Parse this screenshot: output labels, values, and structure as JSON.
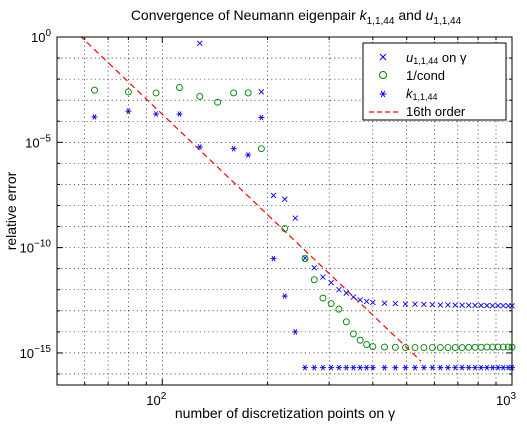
{
  "chart_data": {
    "type": "scatter",
    "title": {
      "prefix": "Convergence of Neumann eigenpair ",
      "k_symbol": "k",
      "k_subscript": "1,1,44",
      "conjunction": " and ",
      "u_symbol": "u",
      "u_subscript": "1,1,44"
    },
    "xlabel": "number of discretization points on γ",
    "ylabel": "relative error",
    "xscale": "log",
    "yscale": "log",
    "xlim": [
      50,
      1000
    ],
    "ylim": [
      3e-17,
      1
    ],
    "x_tick_labels": [
      {
        "value": 100,
        "base": "10",
        "exp": "2"
      },
      {
        "value": 1000,
        "base": "10",
        "exp": "3"
      }
    ],
    "y_tick_labels": [
      {
        "value": 1e-15,
        "base": "10",
        "exp": "−15"
      },
      {
        "value": 1e-10,
        "base": "10",
        "exp": "−10"
      },
      {
        "value": 1e-05,
        "base": "10",
        "exp": "−5"
      },
      {
        "value": 1,
        "base": "10",
        "exp": "0"
      }
    ],
    "grid": true,
    "legend_position": "top-right",
    "legend": [
      {
        "label_symbol": "u",
        "label_subscript": "1,1,44",
        "label_suffix": " on γ",
        "marker": "x",
        "color": "#0000ff"
      },
      {
        "label_text": "1/cond",
        "marker": "o",
        "color": "#008000"
      },
      {
        "label_symbol": "k",
        "label_subscript": "1,1,44",
        "marker": "*",
        "color": "#0000ff"
      },
      {
        "label_text": "16th order",
        "marker": "dashed-line",
        "color": "#ff0000"
      }
    ],
    "series": [
      {
        "marker": "x",
        "color": "#0000ff",
        "points": [
          [
            128,
            0.5
          ],
          [
            192,
            0.0025
          ],
          [
            208,
            3e-08
          ],
          [
            224,
            2e-08
          ],
          [
            240,
            2.5e-09
          ],
          [
            256,
            3.2e-11
          ],
          [
            272,
            1.1e-11
          ],
          [
            288,
            4e-12
          ],
          [
            304,
            2.2e-12
          ],
          [
            320,
            1e-12
          ],
          [
            336,
            7e-13
          ],
          [
            352,
            4.5e-13
          ],
          [
            368,
            3.3e-13
          ],
          [
            384,
            2.8e-13
          ],
          [
            400,
            2.5e-13
          ],
          [
            432,
            2.3e-13
          ],
          [
            464,
            2.2e-13
          ],
          [
            496,
            2.1e-13
          ],
          [
            528,
            2.05e-13
          ],
          [
            560,
            2e-13
          ],
          [
            592,
            1.95e-13
          ],
          [
            624,
            1.9e-13
          ],
          [
            656,
            1.9e-13
          ],
          [
            688,
            1.85e-13
          ],
          [
            720,
            1.85e-13
          ],
          [
            752,
            1.82e-13
          ],
          [
            784,
            1.8e-13
          ],
          [
            816,
            1.8e-13
          ],
          [
            848,
            1.78e-13
          ],
          [
            880,
            1.76e-13
          ],
          [
            912,
            1.75e-13
          ],
          [
            944,
            1.74e-13
          ],
          [
            976,
            1.73e-13
          ],
          [
            1000,
            1.72e-13
          ]
        ]
      },
      {
        "marker": "o",
        "color": "#008000",
        "points": [
          [
            64,
            0.003
          ],
          [
            80,
            0.0025
          ],
          [
            96,
            0.0022
          ],
          [
            112,
            0.004
          ],
          [
            128,
            0.0015
          ],
          [
            144,
            0.0008
          ],
          [
            160,
            0.0022
          ],
          [
            176,
            0.0022
          ],
          [
            192,
            5e-06
          ],
          [
            224,
            8e-10
          ],
          [
            256,
            3e-11
          ],
          [
            272,
            3e-12
          ],
          [
            288,
            4e-13
          ],
          [
            304,
            2.2e-13
          ],
          [
            320,
            1.2e-13
          ],
          [
            336,
            3e-14
          ],
          [
            352,
            8e-15
          ],
          [
            368,
            4e-15
          ],
          [
            384,
            2.5e-15
          ],
          [
            400,
            2e-15
          ],
          [
            432,
            1.9e-15
          ],
          [
            464,
            1.85e-15
          ],
          [
            496,
            1.8e-15
          ],
          [
            528,
            1.8e-15
          ],
          [
            560,
            1.8e-15
          ],
          [
            592,
            1.8e-15
          ],
          [
            624,
            1.8e-15
          ],
          [
            656,
            1.8e-15
          ],
          [
            688,
            1.8e-15
          ],
          [
            720,
            1.8e-15
          ],
          [
            752,
            1.85e-15
          ],
          [
            784,
            1.85e-15
          ],
          [
            816,
            1.85e-15
          ],
          [
            848,
            1.9e-15
          ],
          [
            880,
            1.9e-15
          ],
          [
            912,
            1.9e-15
          ],
          [
            944,
            1.9e-15
          ],
          [
            976,
            1.9e-15
          ],
          [
            1000,
            1.9e-15
          ]
        ]
      },
      {
        "marker": "*",
        "color": "#0000ff",
        "points": [
          [
            64,
            0.00016
          ],
          [
            80,
            0.0003
          ],
          [
            96,
            0.00022
          ],
          [
            112,
            0.00022
          ],
          [
            128,
            6e-06
          ],
          [
            160,
            5e-06
          ],
          [
            176,
            2.5e-06
          ],
          [
            192,
            0.00015
          ],
          [
            208,
            3e-11
          ],
          [
            224,
            5e-13
          ],
          [
            240,
            1e-14
          ],
          [
            256,
            2e-16
          ],
          [
            272,
            2e-16
          ],
          [
            288,
            2e-16
          ],
          [
            304,
            2e-16
          ],
          [
            320,
            2e-16
          ],
          [
            336,
            2e-16
          ],
          [
            352,
            2e-16
          ],
          [
            368,
            2e-16
          ],
          [
            384,
            2e-16
          ],
          [
            400,
            2e-16
          ],
          [
            432,
            2e-16
          ],
          [
            464,
            2e-16
          ],
          [
            496,
            2e-16
          ],
          [
            528,
            2e-16
          ],
          [
            560,
            2e-16
          ],
          [
            592,
            2e-16
          ],
          [
            624,
            2e-16
          ],
          [
            656,
            2e-16
          ],
          [
            688,
            2e-16
          ],
          [
            720,
            2e-16
          ],
          [
            752,
            2e-16
          ],
          [
            784,
            2e-16
          ],
          [
            816,
            2e-16
          ],
          [
            848,
            2e-16
          ],
          [
            880,
            2e-16
          ],
          [
            912,
            2e-16
          ],
          [
            944,
            2e-16
          ],
          [
            976,
            2e-16
          ],
          [
            1000,
            2e-16
          ]
        ]
      }
    ],
    "reference_line": {
      "color": "#ff0000",
      "style": "dashed",
      "points": [
        [
          58,
          1.2
        ],
        [
          550,
          4e-16
        ]
      ]
    }
  }
}
